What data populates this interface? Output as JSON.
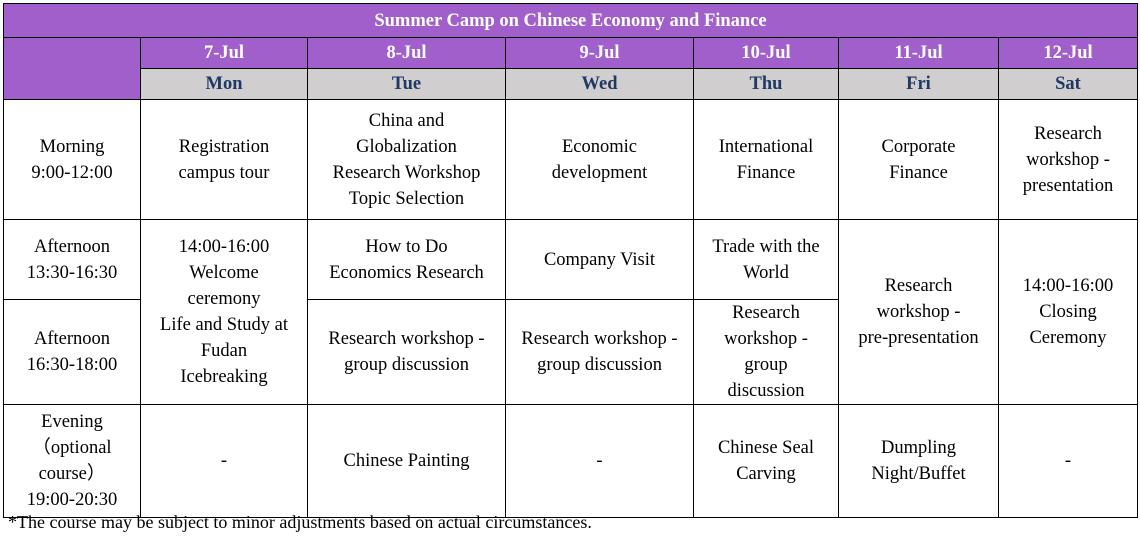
{
  "title": "Summer Camp on Chinese Economy and Finance",
  "days": [
    {
      "date": "7-Jul",
      "day": "Mon"
    },
    {
      "date": "8-Jul",
      "day": "Tue"
    },
    {
      "date": "9-Jul",
      "day": "Wed"
    },
    {
      "date": "10-Jul",
      "day": "Thu"
    },
    {
      "date": "11-Jul",
      "day": "Fri"
    },
    {
      "date": "12-Jul",
      "day": "Sat"
    }
  ],
  "slots": {
    "morning": "Morning\n9:00-12:00",
    "afternoon1": "Afternoon\n13:30-16:30",
    "afternoon2": "Afternoon\n16:30-18:00",
    "evening": "Evening\n（optional\ncourse）\n19:00-20:30"
  },
  "morning": [
    "Registration\ncampus tour",
    "China and\nGlobalization\nResearch Workshop\nTopic Selection",
    "Economic\ndevelopment",
    "International\nFinance",
    "Corporate\nFinance",
    "Research\nworkshop -\npresentation"
  ],
  "afternoon1": {
    "mon": "14:00-16:00\nWelcome\nceremony\nLife and Study at\nFudan\nIcebreaking",
    "tue": "How to Do\nEconomics Research",
    "wed": "Company Visit",
    "thu": "Trade with the\nWorld",
    "fri": "Research\nworkshop -\npre-presentation",
    "sat": "14:00-16:00\nClosing\nCeremony"
  },
  "afternoon2": {
    "tue": "Research workshop -\ngroup discussion",
    "wed": "Research workshop -\ngroup discussion",
    "thu": "Research\nworkshop -\ngroup\ndiscussion"
  },
  "evening": [
    "-",
    "Chinese Painting",
    "-",
    "Chinese Seal\nCarving",
    "Dumpling\nNight/Buffet",
    "-"
  ],
  "footnote": "*The course may be subject to minor adjustments based on actual circumstances.",
  "colors": {
    "header": "#A05FCB",
    "dayrow": "#D0CECE",
    "daytext": "#1F3864"
  }
}
